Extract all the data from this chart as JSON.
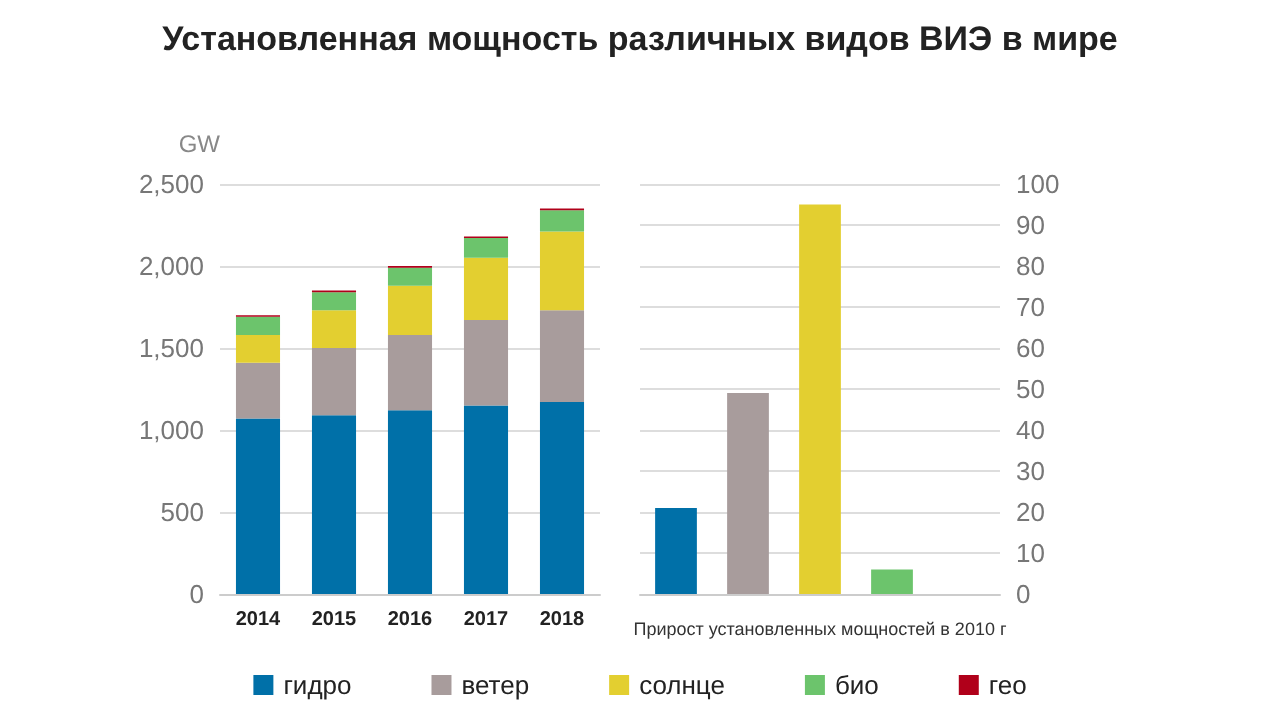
{
  "chart_data": [
    {
      "type": "bar",
      "title": "Установленная мощность различных видов ВИЭ в мире",
      "ylabel": "GW",
      "categories": [
        "2014",
        "2015",
        "2016",
        "2017",
        "2018"
      ],
      "stacked": true,
      "series": [
        {
          "name": "гидро",
          "color": "#0070a8",
          "values": [
            1070,
            1090,
            1120,
            1150,
            1170
          ]
        },
        {
          "name": "ветер",
          "color": "#a89c9c",
          "values": [
            340,
            410,
            460,
            520,
            560
          ]
        },
        {
          "name": "солнце",
          "color": "#e3cf30",
          "values": [
            170,
            230,
            300,
            380,
            480
          ]
        },
        {
          "name": "био",
          "color": "#6cc46c",
          "values": [
            110,
            110,
            110,
            120,
            130
          ]
        },
        {
          "name": "гео",
          "color": "#b0001a",
          "values": [
            10,
            10,
            10,
            10,
            10
          ]
        }
      ],
      "ylim": [
        0,
        2500
      ],
      "yticks": [
        0,
        500,
        {
          "value": 1000,
          "label": "1,000"
        },
        {
          "value": 1500,
          "label": "1,500"
        },
        {
          "value": 2000,
          "label": "2,000"
        },
        {
          "value": 2500,
          "label": "2,500"
        }
      ],
      "grid": "y",
      "legend": "bottom"
    },
    {
      "type": "bar",
      "xlabel": "Прирост установленных мощностей в 2010 г",
      "categories": [
        null,
        null,
        null,
        null,
        null
      ],
      "values": [
        21,
        49,
        95,
        6,
        0
      ],
      "colors": [
        "#0070a8",
        "#a89c9c",
        "#e3cf30",
        "#6cc46c",
        "#b0001a"
      ],
      "ylim": [
        0,
        100
      ],
      "yticks": [
        0,
        10,
        20,
        30,
        40,
        50,
        60,
        70,
        80,
        90,
        100
      ],
      "grid": "y",
      "legend": false
    }
  ]
}
